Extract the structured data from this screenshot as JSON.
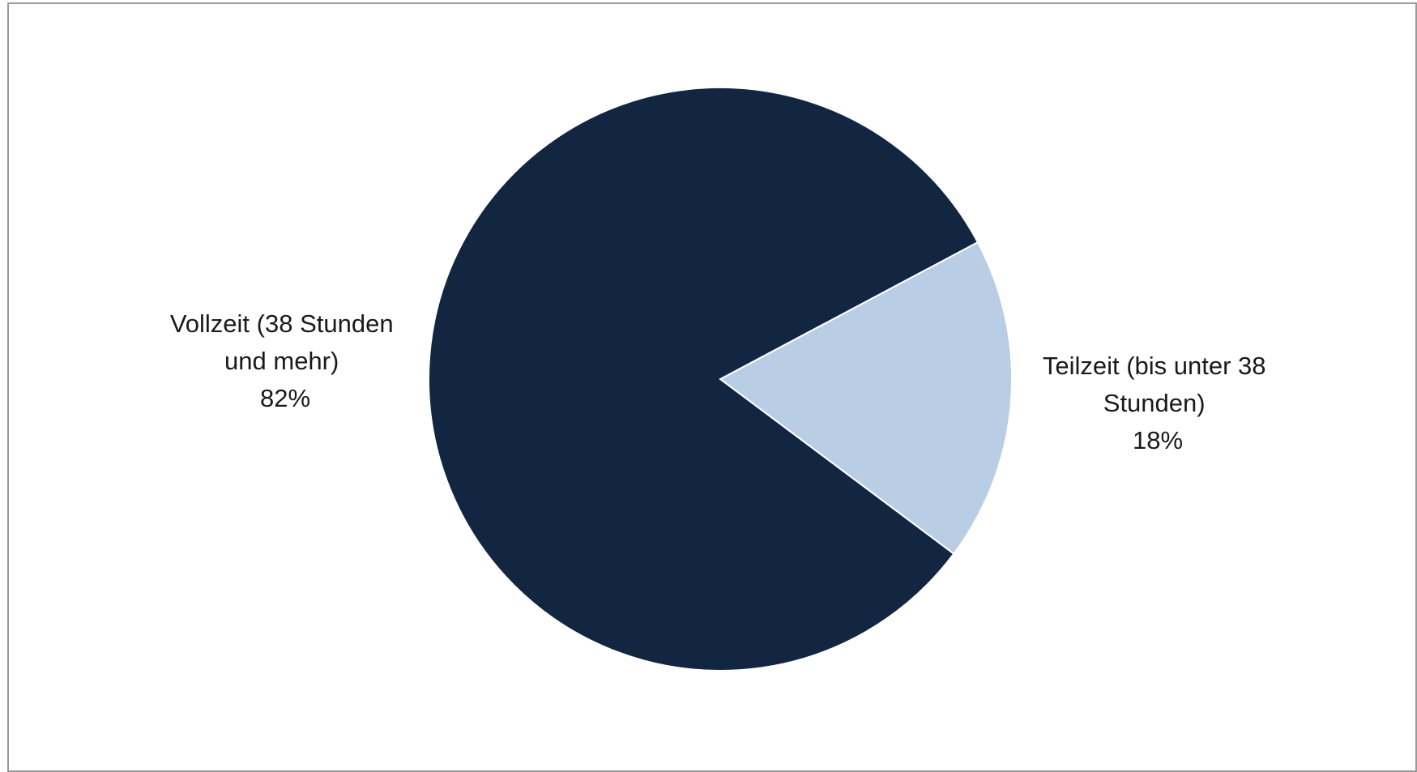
{
  "chart_data": {
    "type": "pie",
    "title": "",
    "slices": [
      {
        "label_lines": [
          "Vollzeit (38 Stunden",
          "und mehr)"
        ],
        "percent_label": "82%",
        "value": 82,
        "color": "#132641"
      },
      {
        "label_lines": [
          "Teilzeit (bis unter 38",
          "Stunden)"
        ],
        "percent_label": "18%",
        "value": 18,
        "color": "#b9cde4"
      }
    ],
    "legend": "none",
    "data_labels": "outside"
  }
}
